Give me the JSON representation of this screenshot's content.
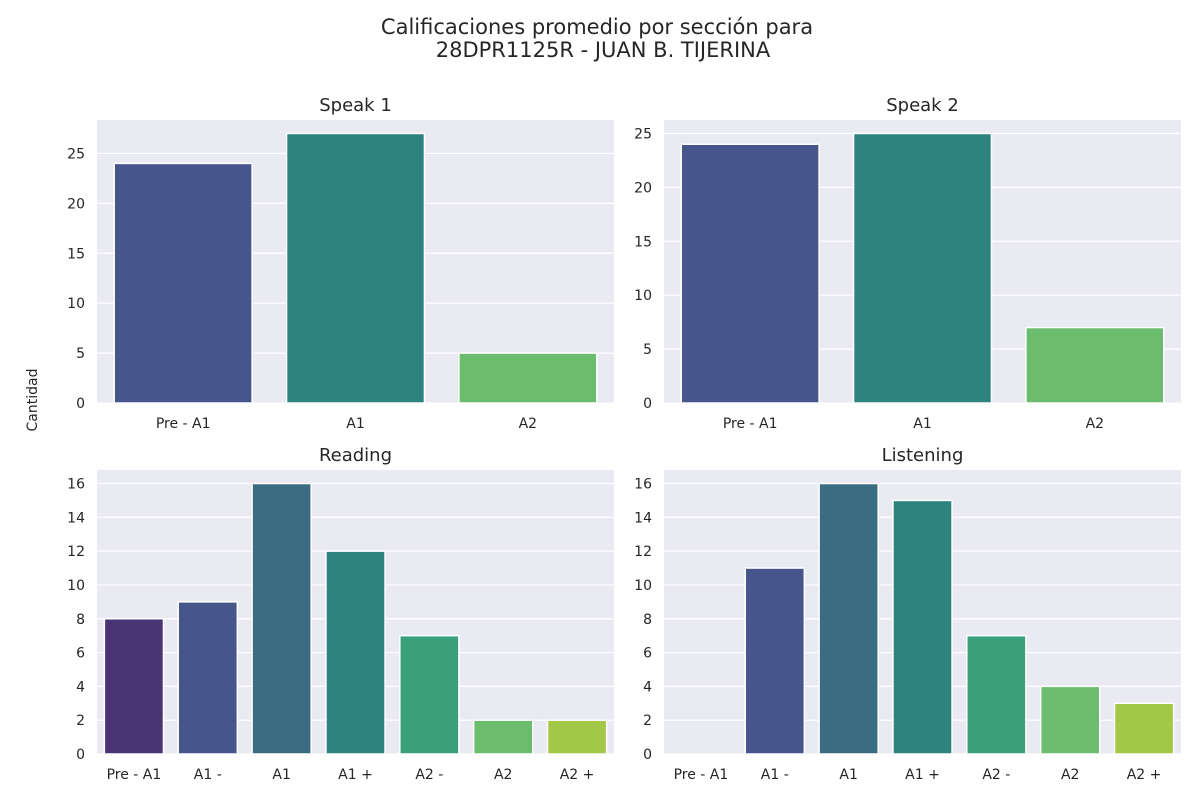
{
  "figure": {
    "title_line1": "Calificaciones promedio por sección para",
    "title_line2": "28DPR1125R - JUAN B. TIJERINA",
    "ylabel": "Cantidad"
  },
  "chart_data": [
    {
      "type": "bar",
      "title": "Speak 1",
      "categories": [
        "Pre - A1",
        "A1",
        "A2"
      ],
      "values": [
        24,
        27,
        5
      ],
      "colors": [
        "#46568a",
        "#2e837f",
        "#6bbd6d"
      ],
      "ylim": [
        0,
        28.35
      ],
      "yticks": [
        0,
        5,
        10,
        15,
        20,
        25
      ],
      "grid": true
    },
    {
      "type": "bar",
      "title": "Speak 2",
      "categories": [
        "Pre - A1",
        "A1",
        "A2"
      ],
      "values": [
        24,
        25,
        7
      ],
      "colors": [
        "#46568a",
        "#2e837f",
        "#6bbd6d"
      ],
      "ylim": [
        0,
        26.25
      ],
      "yticks": [
        0,
        5,
        10,
        15,
        20,
        25
      ],
      "grid": true
    },
    {
      "type": "bar",
      "title": "Reading",
      "categories": [
        "Pre - A1",
        "A1 -",
        "A1",
        "A1 +",
        "A2 -",
        "A2",
        "A2 +"
      ],
      "values": [
        8,
        9,
        16,
        12,
        7,
        2,
        2
      ],
      "colors": [
        "#4a3574",
        "#46568a",
        "#3a6d82",
        "#2e837f",
        "#3aa07b",
        "#6bbd6d",
        "#a3c746"
      ],
      "ylim": [
        0,
        16.8
      ],
      "yticks": [
        0,
        2,
        4,
        6,
        8,
        10,
        12,
        14,
        16
      ],
      "grid": true
    },
    {
      "type": "bar",
      "title": "Listening",
      "categories": [
        "Pre - A1",
        "A1 -",
        "A1",
        "A1 +",
        "A2 -",
        "A2",
        "A2 +"
      ],
      "values": [
        0,
        11,
        16,
        15,
        7,
        4,
        3
      ],
      "colors": [
        "#4a3574",
        "#46568a",
        "#3a6d82",
        "#2e837f",
        "#3aa07b",
        "#6bbd6d",
        "#a3c746"
      ],
      "ylim": [
        0,
        16.8
      ],
      "yticks": [
        0,
        2,
        4,
        6,
        8,
        10,
        12,
        14,
        16
      ],
      "grid": true
    }
  ]
}
